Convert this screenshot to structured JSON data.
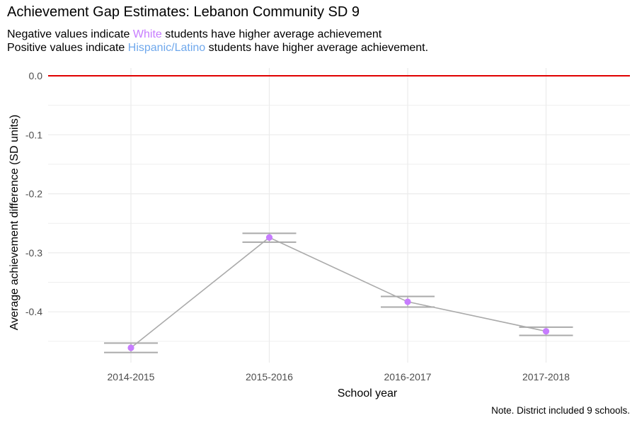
{
  "title": "Achievement Gap Estimates: Lebanon Community SD 9",
  "subtitle": {
    "line1_prefix": "Negative values indicate ",
    "line1_highlight": "White",
    "line1_suffix": " students have higher average achievement",
    "line2_prefix": "Positive values indicate ",
    "line2_highlight": "Hispanic/Latino",
    "line2_suffix": " students have higher average achievement."
  },
  "note": "Note. District included 9 schools.",
  "colors": {
    "white_group": "#c77cff",
    "hispanic_group": "#6fa8ec",
    "reference_line": "#e00000",
    "line": "#aaaaaa",
    "grid": "#ebebeb"
  },
  "chart_data": {
    "type": "line",
    "title": "Achievement Gap Estimates: Lebanon Community SD 9",
    "xlabel": "School year",
    "ylabel": "Average achievement difference (SD units)",
    "categories": [
      "2014-2015",
      "2015-2016",
      "2016-2017",
      "2017-2018"
    ],
    "series": [
      {
        "values": [
          -0.461,
          -0.274,
          -0.383,
          -0.433
        ],
        "lower": [
          -0.469,
          -0.282,
          -0.392,
          -0.44
        ],
        "upper": [
          -0.453,
          -0.267,
          -0.374,
          -0.426
        ]
      }
    ],
    "yticks": [
      0.0,
      -0.1,
      -0.2,
      -0.3,
      -0.4
    ],
    "ytick_labels": [
      "0.0",
      "-0.1",
      "-0.2",
      "-0.3",
      "-0.4"
    ],
    "ylim": [
      -0.485,
      0.015
    ],
    "reference_line": 0.0,
    "grid": true,
    "legend": "none"
  }
}
